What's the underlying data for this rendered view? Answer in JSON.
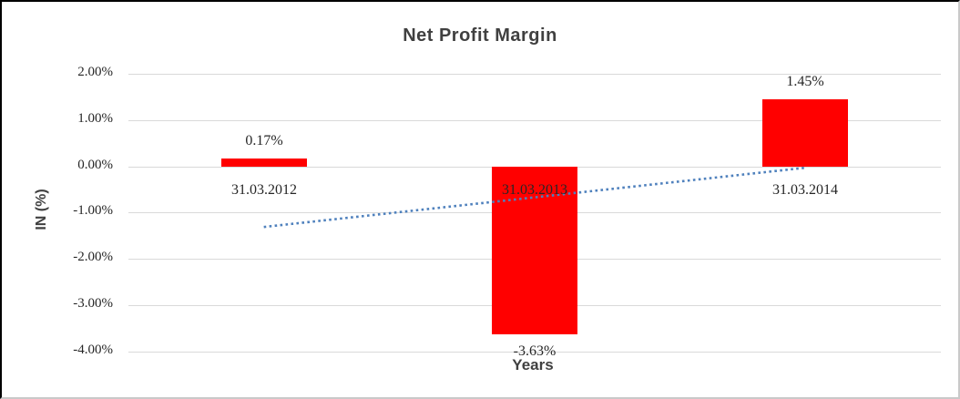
{
  "chart_data": {
    "type": "bar",
    "title": "Net Profit Margin",
    "xlabel": "Years",
    "ylabel": "IN (%)",
    "categories": [
      "31.03.2012",
      "31.03.2013",
      "31.03.2014"
    ],
    "series": [
      {
        "name": "Net Profit Margin",
        "values": [
          0.17,
          -3.63,
          1.45
        ]
      }
    ],
    "data_labels": [
      "0.17%",
      "-3.63%",
      "1.45%"
    ],
    "ylim": [
      -4,
      2
    ],
    "ytick_values": [
      2,
      1,
      0,
      -1,
      -2,
      -3,
      -4
    ],
    "ytick_labels": [
      "2.00%",
      "1.00%",
      "0.00%",
      "-1.00%",
      "-2.00%",
      "-3.00%",
      "-4.00%"
    ],
    "grid": true,
    "legend": "none",
    "trendline": {
      "type": "linear",
      "style": "dotted",
      "start_value": -1.31,
      "end_value": -0.03
    }
  },
  "colors": {
    "bar": "#ff0000",
    "trendline": "#4f81bd",
    "gridline": "#d9d9d9",
    "title_text": "#404040",
    "tick_text": "#262626",
    "background": "#ffffff",
    "frame_border": "#000000"
  }
}
